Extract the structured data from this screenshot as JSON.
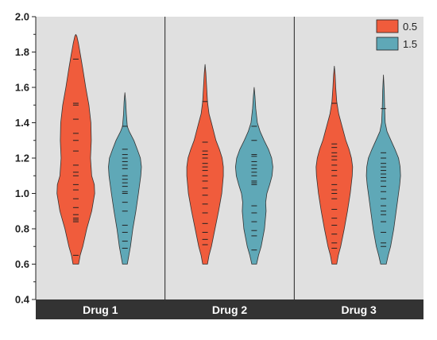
{
  "colors": {
    "dose_0_5": "#F05C3C",
    "dose_1_5": "#5FA8B7",
    "panel_bg": "#E0E0E0",
    "strip_bg": "#333333",
    "strip_text": "#FFFFFF",
    "outline": "#333333"
  },
  "chart_data": {
    "type": "violin",
    "title": "",
    "xlabel": "",
    "ylabel": "",
    "ylim": [
      0.4,
      2.0
    ],
    "yticks": [
      "0.4",
      "0.6",
      "0.8",
      "1.0",
      "1.2",
      "1.4",
      "1.6",
      "1.8",
      "2.0"
    ],
    "grid": false,
    "legend_position": "top-right",
    "legend": [
      "0.5",
      "1.5"
    ],
    "facets": [
      "Drug 1",
      "Drug 2",
      "Drug 3"
    ],
    "series": [
      {
        "facet": "Drug 1",
        "name": "0.5",
        "density": [
          [
            0.6,
            0.14
          ],
          [
            0.65,
            0.22
          ],
          [
            0.7,
            0.35
          ],
          [
            0.8,
            0.55
          ],
          [
            0.9,
            0.8
          ],
          [
            1.0,
            0.95
          ],
          [
            1.05,
            0.93
          ],
          [
            1.1,
            0.8
          ],
          [
            1.2,
            0.74
          ],
          [
            1.3,
            0.78
          ],
          [
            1.4,
            0.76
          ],
          [
            1.5,
            0.66
          ],
          [
            1.6,
            0.5
          ],
          [
            1.7,
            0.36
          ],
          [
            1.78,
            0.24
          ],
          [
            1.85,
            0.13
          ],
          [
            1.89,
            0.05
          ],
          [
            1.9,
            0.0
          ]
        ],
        "points": [
          0.65,
          0.84,
          0.85,
          0.86,
          0.88,
          0.92,
          0.97,
          1.02,
          1.05,
          1.1,
          1.12,
          1.16,
          1.24,
          1.3,
          1.34,
          1.42,
          1.5,
          1.51,
          1.76
        ]
      },
      {
        "facet": "Drug 1",
        "name": "1.5",
        "density": [
          [
            0.6,
            0.12
          ],
          [
            0.65,
            0.2
          ],
          [
            0.7,
            0.28
          ],
          [
            0.8,
            0.4
          ],
          [
            0.9,
            0.55
          ],
          [
            1.0,
            0.68
          ],
          [
            1.1,
            0.8
          ],
          [
            1.15,
            0.83
          ],
          [
            1.2,
            0.78
          ],
          [
            1.25,
            0.62
          ],
          [
            1.3,
            0.45
          ],
          [
            1.35,
            0.22
          ],
          [
            1.38,
            0.12
          ],
          [
            1.45,
            0.07
          ],
          [
            1.52,
            0.04
          ],
          [
            1.57,
            0.0
          ]
        ],
        "points": [
          0.69,
          0.73,
          0.78,
          0.82,
          0.9,
          0.95,
          1.0,
          1.01,
          1.04,
          1.06,
          1.08,
          1.1,
          1.14,
          1.16,
          1.18,
          1.2,
          1.22,
          1.25,
          1.38
        ]
      },
      {
        "facet": "Drug 2",
        "name": "0.5",
        "density": [
          [
            0.6,
            0.12
          ],
          [
            0.65,
            0.2
          ],
          [
            0.7,
            0.32
          ],
          [
            0.8,
            0.5
          ],
          [
            0.9,
            0.68
          ],
          [
            1.0,
            0.84
          ],
          [
            1.1,
            0.92
          ],
          [
            1.15,
            0.92
          ],
          [
            1.2,
            0.86
          ],
          [
            1.25,
            0.72
          ],
          [
            1.3,
            0.55
          ],
          [
            1.4,
            0.32
          ],
          [
            1.45,
            0.2
          ],
          [
            1.52,
            0.12
          ],
          [
            1.6,
            0.08
          ],
          [
            1.68,
            0.04
          ],
          [
            1.73,
            0.0
          ]
        ],
        "points": [
          0.71,
          0.74,
          0.78,
          0.83,
          0.89,
          0.94,
          0.99,
          1.03,
          1.07,
          1.1,
          1.13,
          1.15,
          1.17,
          1.2,
          1.22,
          1.24,
          1.29,
          1.52
        ]
      },
      {
        "facet": "Drug 2",
        "name": "1.5",
        "density": [
          [
            0.6,
            0.12
          ],
          [
            0.65,
            0.22
          ],
          [
            0.7,
            0.35
          ],
          [
            0.8,
            0.52
          ],
          [
            0.9,
            0.6
          ],
          [
            0.95,
            0.58
          ],
          [
            1.0,
            0.64
          ],
          [
            1.05,
            0.78
          ],
          [
            1.1,
            0.9
          ],
          [
            1.15,
            0.94
          ],
          [
            1.2,
            0.88
          ],
          [
            1.25,
            0.72
          ],
          [
            1.3,
            0.5
          ],
          [
            1.35,
            0.3
          ],
          [
            1.4,
            0.16
          ],
          [
            1.48,
            0.08
          ],
          [
            1.55,
            0.04
          ],
          [
            1.6,
            0.0
          ]
        ],
        "points": [
          0.68,
          0.76,
          0.79,
          0.84,
          0.89,
          0.93,
          1.05,
          1.06,
          1.07,
          1.1,
          1.12,
          1.14,
          1.16,
          1.18,
          1.21,
          1.22,
          1.3,
          1.38
        ]
      },
      {
        "facet": "Drug 3",
        "name": "0.5",
        "density": [
          [
            0.6,
            0.12
          ],
          [
            0.65,
            0.2
          ],
          [
            0.7,
            0.32
          ],
          [
            0.8,
            0.5
          ],
          [
            0.9,
            0.66
          ],
          [
            1.0,
            0.8
          ],
          [
            1.1,
            0.9
          ],
          [
            1.15,
            0.92
          ],
          [
            1.2,
            0.86
          ],
          [
            1.25,
            0.74
          ],
          [
            1.3,
            0.58
          ],
          [
            1.4,
            0.34
          ],
          [
            1.45,
            0.22
          ],
          [
            1.52,
            0.12
          ],
          [
            1.6,
            0.07
          ],
          [
            1.67,
            0.04
          ],
          [
            1.72,
            0.0
          ]
        ],
        "points": [
          0.69,
          0.72,
          0.77,
          0.82,
          0.86,
          0.91,
          0.97,
          1.0,
          1.02,
          1.05,
          1.1,
          1.13,
          1.16,
          1.19,
          1.21,
          1.23,
          1.26,
          1.28,
          1.51
        ]
      },
      {
        "facet": "Drug 3",
        "name": "1.5",
        "density": [
          [
            0.6,
            0.14
          ],
          [
            0.65,
            0.24
          ],
          [
            0.7,
            0.36
          ],
          [
            0.8,
            0.52
          ],
          [
            0.9,
            0.64
          ],
          [
            1.0,
            0.76
          ],
          [
            1.05,
            0.82
          ],
          [
            1.1,
            0.86
          ],
          [
            1.15,
            0.84
          ],
          [
            1.2,
            0.76
          ],
          [
            1.25,
            0.58
          ],
          [
            1.3,
            0.38
          ],
          [
            1.35,
            0.18
          ],
          [
            1.4,
            0.09
          ],
          [
            1.48,
            0.06
          ],
          [
            1.58,
            0.04
          ],
          [
            1.67,
            0.0
          ]
        ],
        "points": [
          0.7,
          0.72,
          0.78,
          0.84,
          0.88,
          0.9,
          0.93,
          0.97,
          1.01,
          1.04,
          1.07,
          1.09,
          1.11,
          1.13,
          1.15,
          1.17,
          1.2,
          1.23,
          1.48
        ]
      }
    ]
  }
}
